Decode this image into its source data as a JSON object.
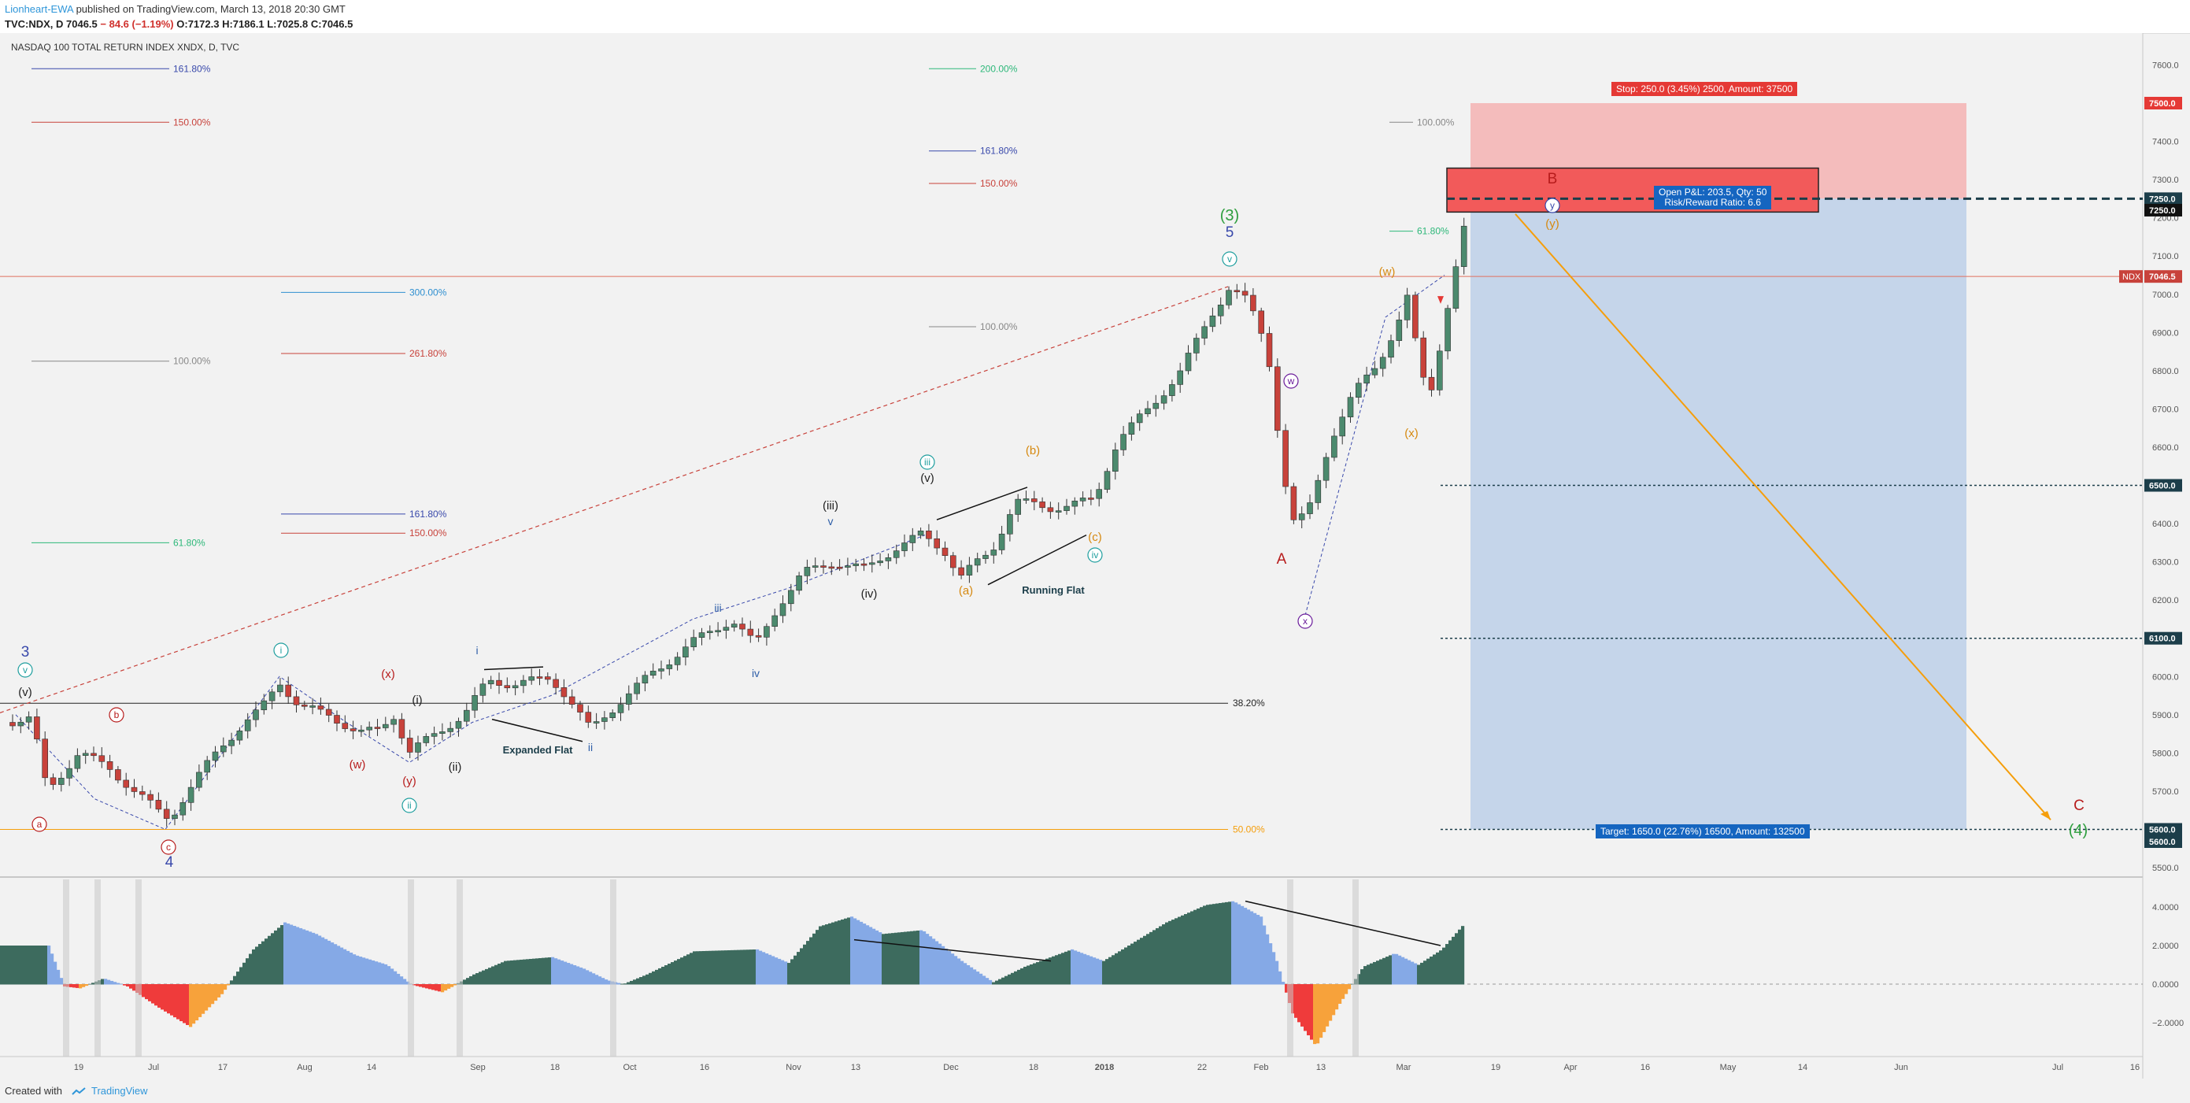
{
  "header": {
    "author": "Lionheart-EWA",
    "published": "published on TradingView.com, March 13, 2018 20:30 GMT",
    "symbol": "TVC:NDX, D",
    "last": "7046.5",
    "change": "− 84.6 (−1.19%)",
    "open": "O:7172.3",
    "high": "H:7186.1",
    "low": "L:7025.8",
    "close": "C:7046.5"
  },
  "chart_title": "NASDAQ 100 TOTAL RETURN INDEX XNDX, D, TVC",
  "footer": {
    "created_with": "Created with",
    "brand": "TradingView"
  },
  "colors": {
    "up": "#4c8a6e",
    "down": "#c8423b",
    "teal": "#1e9e9e",
    "blue_wave": "#3949ab",
    "orange": "#f59e0b",
    "red_label": "#b71c1c",
    "green_label": "#2e9e3e",
    "target": "#1565c0"
  },
  "chart_data": {
    "type": "candlestick",
    "title": "NASDAQ 100 TOTAL RETURN INDEX XNDX, D, TVC",
    "ylim": [
      5400,
      7650
    ],
    "y_ticks": [
      "7600.0",
      "7500.0",
      "7400.0",
      "7300.0",
      "7250.0",
      "7200.0",
      "7100.0",
      "7000.0",
      "6900.0",
      "6800.0",
      "6700.0",
      "6600.0",
      "6500.0",
      "6400.0",
      "6300.0",
      "6200.0",
      "6100.0",
      "6000.0",
      "5900.0",
      "5800.0",
      "5700.0",
      "5600.0",
      "5500.0"
    ],
    "x_ticks": [
      "19",
      "Jul",
      "17",
      "Aug",
      "14",
      "Sep",
      "18",
      "Oct",
      "16",
      "Nov",
      "13",
      "Dec",
      "18",
      "2018",
      "22",
      "Feb",
      "13",
      "Mar",
      "19",
      "Apr",
      "16",
      "May",
      "14",
      "Jun",
      "Jul",
      "16"
    ],
    "price_tags": [
      {
        "label": "7500.0",
        "value": 7500,
        "color": "#e53935"
      },
      {
        "label": "7250.0",
        "value": 7250,
        "color": "#1c3e4a"
      },
      {
        "label": "7250.0",
        "value": 7220,
        "color": "#111111"
      },
      {
        "label": "7046.5",
        "value": 7046.5,
        "color": "#c8423b"
      },
      {
        "label": "6500.0",
        "value": 6500,
        "color": "#1c3e4a"
      },
      {
        "label": "6100.0",
        "value": 6100,
        "color": "#1c3e4a"
      },
      {
        "label": "5600.0",
        "value": 5600,
        "color": "#1c3e4a"
      },
      {
        "label": "5600.0",
        "value": 5568,
        "color": "#1c3e4a"
      }
    ],
    "symbol_tag": "NDX",
    "fib_levels": [
      {
        "label": "161.80%",
        "value": 7590,
        "color": "#3949ab",
        "x0": 40,
        "x1": 215
      },
      {
        "label": "150.00%",
        "value": 7450,
        "color": "#c8423b",
        "x0": 40,
        "x1": 215
      },
      {
        "label": "300.00%",
        "value": 7005,
        "color": "#2f8fd0",
        "x0": 357,
        "x1": 515
      },
      {
        "label": "261.80%",
        "value": 6845,
        "color": "#c8423b",
        "x0": 357,
        "x1": 515
      },
      {
        "label": "100.00%",
        "value": 6825,
        "color": "#888888",
        "x0": 40,
        "x1": 215
      },
      {
        "label": "161.80%",
        "value": 6425,
        "color": "#3949ab",
        "x0": 357,
        "x1": 515
      },
      {
        "label": "150.00%",
        "value": 6375,
        "color": "#c8423b",
        "x0": 357,
        "x1": 515
      },
      {
        "label": "61.80%",
        "value": 6350,
        "color": "#2eb87a",
        "x0": 40,
        "x1": 215
      },
      {
        "label": "200.00%",
        "value": 7590,
        "color": "#2eb87a",
        "x0": 1180,
        "x1": 1240
      },
      {
        "label": "161.80%",
        "value": 7375,
        "color": "#3949ab",
        "x0": 1180,
        "x1": 1240
      },
      {
        "label": "150.00%",
        "value": 7290,
        "color": "#c8423b",
        "x0": 1180,
        "x1": 1240
      },
      {
        "label": "100.00%",
        "value": 6915,
        "color": "#888888",
        "x0": 1180,
        "x1": 1240
      },
      {
        "label": "100.00%",
        "value": 7450,
        "color": "#888888",
        "x0": 1765,
        "x1": 1795
      },
      {
        "label": "61.80%",
        "value": 7165,
        "color": "#2eb87a",
        "x0": 1765,
        "x1": 1795
      },
      {
        "label": "38.20%",
        "value": 5930,
        "color": "#222222",
        "x0": 0,
        "x1": 1560
      },
      {
        "label": "50.00%",
        "value": 5600,
        "color": "#f59e0b",
        "x0": 0,
        "x1": 1560
      }
    ],
    "position": {
      "stop_label": "Stop: 250.0 (3.45%) 2500, Amount: 37500",
      "pnl_label": "Open P&L: 203.5, Qty: 50",
      "rr_label": "Risk/Reward Ratio: 6.6",
      "target_label": "Target: 1650.0 (22.76%) 16500, Amount: 132500",
      "entry": 7250,
      "stop": 7500,
      "target": 5600
    },
    "osc_ticks": [
      "4.0000",
      "2.0000",
      "0.0000",
      "−2.0000"
    ],
    "wave_labels": {
      "major": [
        {
          "text": "3",
          "color": "#3949ab"
        },
        {
          "text": "4",
          "color": "#3949ab"
        },
        {
          "text": "5",
          "color": "#3949ab"
        },
        {
          "text": "(3)",
          "color": "#2e9e3e"
        },
        {
          "text": "(4)",
          "color": "#2e9e3e"
        },
        {
          "text": "A",
          "color": "#b71c1c"
        },
        {
          "text": "B",
          "color": "#b71c1c"
        },
        {
          "text": "C",
          "color": "#b71c1c"
        }
      ],
      "circled": [
        {
          "text": "v",
          "color": "#1e9e9e"
        },
        {
          "text": "a",
          "color": "#b71c1c"
        },
        {
          "text": "b",
          "color": "#b71c1c"
        },
        {
          "text": "c",
          "color": "#b71c1c"
        },
        {
          "text": "i",
          "color": "#1e9e9e"
        },
        {
          "text": "ii",
          "color": "#1e9e9e"
        },
        {
          "text": "iii",
          "color": "#1e9e9e"
        },
        {
          "text": "iv",
          "color": "#1e9e9e"
        },
        {
          "text": "v",
          "color": "#1e9e9e"
        },
        {
          "text": "w",
          "color": "#6a1b9a"
        },
        {
          "text": "x",
          "color": "#6a1b9a"
        },
        {
          "text": "y",
          "color": "#3949ab"
        }
      ],
      "paren": [
        {
          "text": "(v)",
          "color": "#222"
        },
        {
          "text": "(x)",
          "color": "#b71c1c"
        },
        {
          "text": "(i)",
          "color": "#222"
        },
        {
          "text": "(w)",
          "color": "#b71c1c"
        },
        {
          "text": "(y)",
          "color": "#b71c1c"
        },
        {
          "text": "(ii)",
          "color": "#222"
        },
        {
          "text": "(iii)",
          "color": "#222"
        },
        {
          "text": "(iv)",
          "color": "#222"
        },
        {
          "text": "(v)",
          "color": "#222"
        },
        {
          "text": "(a)",
          "color": "#d68910"
        },
        {
          "text": "(b)",
          "color": "#d68910"
        },
        {
          "text": "(c)",
          "color": "#d68910"
        },
        {
          "text": "(w)",
          "color": "#d68910"
        },
        {
          "text": "(x)",
          "color": "#d68910"
        },
        {
          "text": "(y)",
          "color": "#d68910"
        }
      ],
      "small": [
        {
          "text": "i",
          "color": "#2f5fa8"
        },
        {
          "text": "ii",
          "color": "#2f5fa8"
        },
        {
          "text": "iii",
          "color": "#2f5fa8"
        },
        {
          "text": "iv",
          "color": "#2f5fa8"
        },
        {
          "text": "v",
          "color": "#2f5fa8"
        }
      ],
      "notes": [
        "Expanded Flat",
        "Running Flat"
      ]
    }
  }
}
